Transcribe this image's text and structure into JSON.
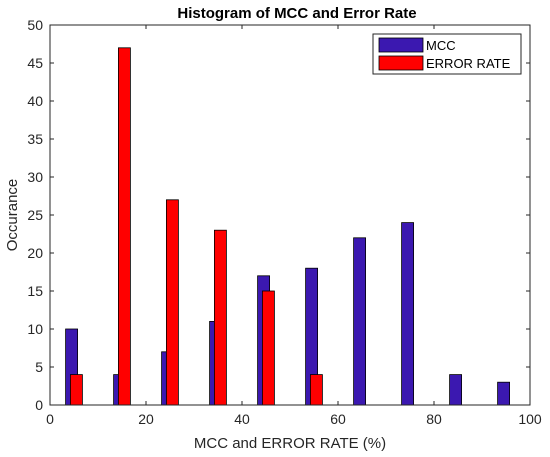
{
  "chart_data": {
    "type": "bar",
    "title": "Histogram of MCC and Error Rate",
    "xlabel": "MCC and ERROR RATE (%)",
    "ylabel": "Occurance",
    "xlim": [
      0,
      100
    ],
    "ylim": [
      0,
      50
    ],
    "xticks": [
      "0",
      "20",
      "40",
      "60",
      "80",
      "100"
    ],
    "yticks": [
      "0",
      "5",
      "10",
      "15",
      "20",
      "25",
      "30",
      "35",
      "40",
      "45",
      "50"
    ],
    "grid": false,
    "legend_position": "top-right",
    "series": [
      {
        "name": "MCC",
        "color": "#3b18b0",
        "x": [
          4.5,
          14.5,
          24.5,
          34.5,
          44.5,
          54.5,
          64.5,
          74.5,
          84.5,
          94.5
        ],
        "values": [
          10,
          4,
          7,
          11,
          17,
          18,
          22,
          24,
          4,
          3
        ]
      },
      {
        "name": "ERROR RATE",
        "color": "#ff0000",
        "x": [
          5.5,
          15.5,
          25.5,
          35.5,
          45.5,
          55.5,
          65.5,
          75.5,
          85.5,
          95.5
        ],
        "values": [
          4,
          47,
          27,
          23,
          15,
          4,
          0,
          0,
          0,
          0
        ]
      }
    ]
  }
}
